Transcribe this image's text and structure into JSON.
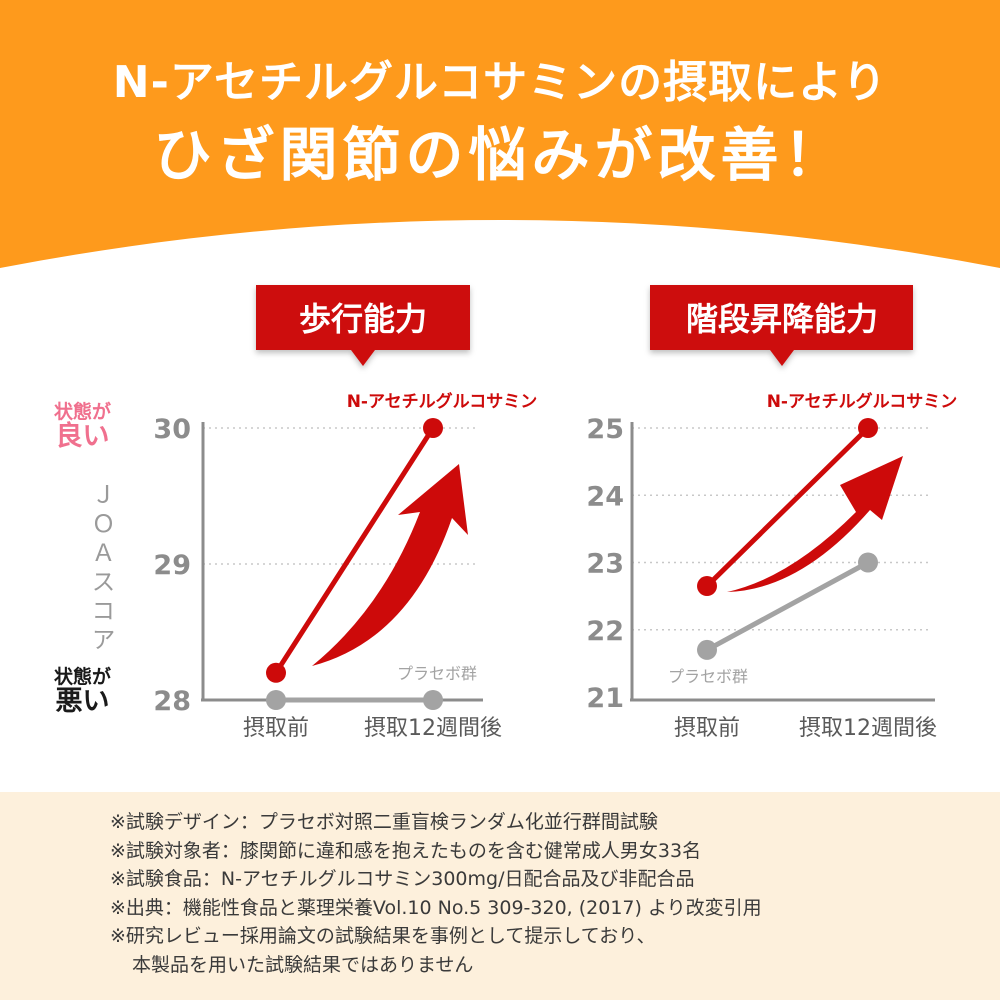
{
  "header": {
    "line1": "N-アセチルグルコサミンの摂取により",
    "line2": "ひざ関節の悩みが改善！"
  },
  "y_axis": {
    "good_small": "状態が",
    "good_big": "良い",
    "bad_small": "状態が",
    "bad_big": "悪い",
    "label": "ＪＯＡスコア"
  },
  "colors": {
    "banner": "#fe9a1c",
    "red": "#cd0a0a",
    "gray": "#a3a3a3",
    "pink": "#f0708e",
    "notes_bg": "#fdf0dc"
  },
  "chart_data": [
    {
      "type": "line",
      "title": "歩行能力",
      "categories": [
        "摂取前",
        "摂取12週間後"
      ],
      "yticks": [
        28,
        29,
        30
      ],
      "ylim": [
        28,
        30
      ],
      "series": [
        {
          "name": "N-アセチルグルコサミン",
          "values": [
            28.2,
            30.0
          ]
        },
        {
          "name": "プラセボ群",
          "values": [
            28.0,
            28.0
          ]
        }
      ]
    },
    {
      "type": "line",
      "title": "階段昇降能力",
      "categories": [
        "摂取前",
        "摂取12週間後"
      ],
      "yticks": [
        21,
        22,
        23,
        24,
        25
      ],
      "ylim": [
        21,
        25
      ],
      "series": [
        {
          "name": "N-アセチルグルコサミン",
          "values": [
            22.65,
            25.0
          ]
        },
        {
          "name": "プラセボ群",
          "values": [
            21.7,
            23.0
          ]
        }
      ]
    }
  ],
  "notes": [
    "※試験デザイン：プラセボ対照二重盲検ランダム化並行群間試験",
    "※試験対象者：膝関節に違和感を抱えたものを含む健常成人男女33名",
    "※試験食品：N-アセチルグルコサミン300mg/日配合品及び非配合品",
    "※出典：機能性食品と薬理栄養Vol.10 No.5 309-320, (2017) より改変引用",
    "※研究レビュー採用論文の試験結果を事例として提示しており、",
    "本製品を用いた試験結果ではありません"
  ]
}
